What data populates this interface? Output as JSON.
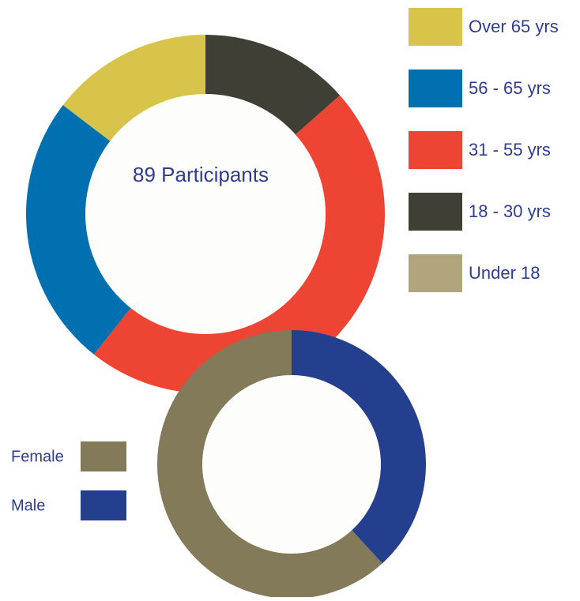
{
  "chart_data": [
    {
      "type": "donut",
      "center_label": "89 Participants",
      "categories": [
        "Over 65 yrs",
        "56 - 65 yrs",
        "31 - 55 yrs",
        "18 - 30 yrs",
        "Under 18"
      ],
      "values": [
        13,
        22,
        42,
        12,
        0
      ],
      "colors": [
        "#d8c44a",
        "#0070b0",
        "#ee4433",
        "#403f36",
        "#b0a57c"
      ]
    },
    {
      "type": "donut",
      "categories": [
        "Female",
        "Male"
      ],
      "values": [
        55,
        34
      ],
      "colors": [
        "#827a58",
        "#253f8f"
      ]
    }
  ]
}
